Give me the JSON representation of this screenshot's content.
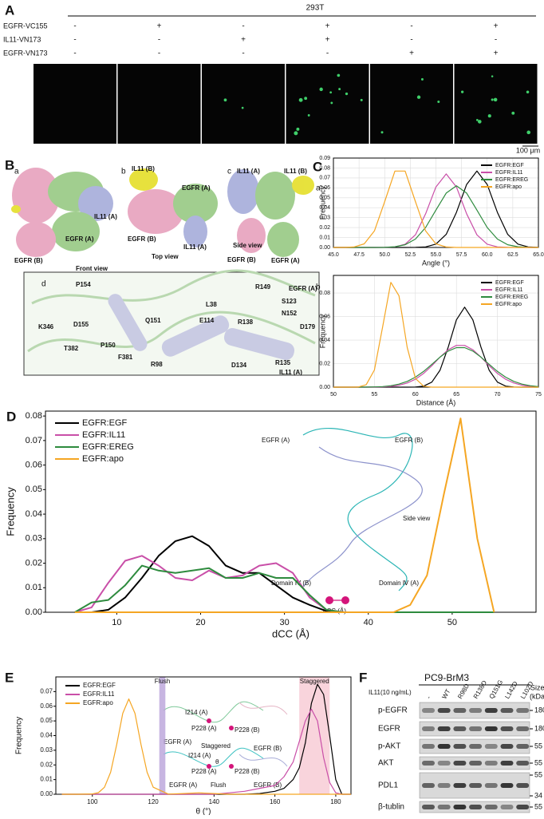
{
  "panel_labels": [
    "A",
    "B",
    "C",
    "D",
    "E",
    "F"
  ],
  "panel_a": {
    "title": "293T",
    "rows": [
      {
        "label": "EGFR-VC155",
        "marks": [
          "-",
          "+",
          "-",
          "+",
          "-",
          "+"
        ]
      },
      {
        "label": "IL11-VN173",
        "marks": [
          "-",
          "-",
          "+",
          "+",
          "-",
          "-"
        ]
      },
      {
        "label": "EGFR-VN173",
        "marks": [
          "-",
          "-",
          "-",
          "-",
          "+",
          "+"
        ]
      }
    ],
    "scale_bar": "100 μm"
  },
  "panel_b": {
    "views": [
      {
        "letter": "a",
        "caption": "Front view",
        "labels": [
          "IL11 (A)",
          "EGFR (A)",
          "EGFR (B)"
        ]
      },
      {
        "letter": "b",
        "caption": "Top view",
        "labels": [
          "IL11 (B)",
          "EGFR (A)",
          "EGFR (B)",
          "IL11 (A)"
        ]
      },
      {
        "letter": "c",
        "caption": "Side view",
        "labels": [
          "IL11 (A)",
          "IL11 (B)",
          "EGFR (B)",
          "EGFR (A)"
        ]
      }
    ],
    "detail": {
      "letter": "d",
      "labels": [
        "P154",
        "L38",
        "R149",
        "EGFR (A)",
        "S123",
        "N152",
        "D179",
        "K346",
        "D155",
        "Q151",
        "E114",
        "R138",
        "P150",
        "T382",
        "F381",
        "R98",
        "D134",
        "R135",
        "IL11 (A)"
      ]
    }
  },
  "chart_data": [
    {
      "type": "line",
      "label": "a",
      "xlabel": "Angle (°)",
      "ylabel": "Frequency",
      "grid": true,
      "legend": "upper right",
      "xlim": [
        45,
        65
      ],
      "ylim": [
        0,
        0.09
      ],
      "xticks": [
        {
          "value": 45,
          "label": "45.0"
        },
        {
          "value": 47.5,
          "label": "47.5"
        },
        {
          "value": 50,
          "label": "50.0"
        },
        {
          "value": 52.5,
          "label": "52.5"
        },
        {
          "value": 55,
          "label": "55.0"
        },
        {
          "value": 57.5,
          "label": "57.5"
        },
        {
          "value": 60,
          "label": "60.0"
        },
        {
          "value": 62.5,
          "label": "62.5"
        },
        {
          "value": 65,
          "label": "65.0"
        }
      ],
      "yticks": [
        {
          "value": 0,
          "label": "0.00"
        },
        0.01,
        0.02,
        0.03,
        0.04,
        0.05,
        0.06,
        0.07,
        0.08,
        0.09
      ],
      "x": [
        45,
        46,
        47,
        48,
        49,
        50,
        51,
        52,
        53,
        54,
        55,
        56,
        57,
        58,
        59,
        60,
        61,
        62,
        63,
        64,
        65
      ],
      "series": [
        {
          "name": "EGFR:EGF",
          "color": "#000000",
          "values": [
            0,
            0,
            0,
            0,
            0,
            0,
            0,
            0,
            0.0001,
            0.0006,
            0.0034,
            0.0132,
            0.0353,
            0.0634,
            0.077,
            0.0634,
            0.0353,
            0.0132,
            0.0034,
            0.0006,
            0.0001
          ]
        },
        {
          "name": "EGFR:IL11",
          "color": "#c94fa8",
          "values": [
            0,
            0,
            0,
            0,
            0,
            0.0001,
            0.0006,
            0.0033,
            0.0127,
            0.0339,
            0.0609,
            0.074,
            0.0609,
            0.0339,
            0.0127,
            0.0033,
            0.0006,
            0.0001,
            0,
            0,
            0
          ]
        },
        {
          "name": "EGFR:EREG",
          "color": "#2e8b3e",
          "values": [
            0,
            0,
            0,
            0,
            0,
            0.0001,
            0.0007,
            0.0027,
            0.0084,
            0.0201,
            0.0376,
            0.0547,
            0.062,
            0.0547,
            0.0376,
            0.0201,
            0.0084,
            0.0027,
            0.0007,
            0.0001,
            0
          ]
        },
        {
          "name": "EGFR:apo",
          "color": "#f5a623",
          "values": [
            0,
            0,
            0.0005,
            0.0036,
            0.0166,
            0.0462,
            0.0769,
            0.0769,
            0.0462,
            0.0166,
            0.0036,
            0.0005,
            0,
            0,
            0,
            0,
            0,
            0,
            0,
            0,
            0
          ]
        }
      ]
    },
    {
      "type": "line",
      "label": "b",
      "xlabel": "Distance (Å)",
      "ylabel": "Frequency",
      "grid": true,
      "legend": "upper right",
      "xlim": [
        50,
        75
      ],
      "ylim": [
        0,
        0.095
      ],
      "xticks": [
        50,
        55,
        60,
        65,
        70,
        75
      ],
      "yticks": [
        {
          "value": 0,
          "label": "0.00"
        },
        {
          "value": 0.02,
          "label": "0.02"
        },
        {
          "value": 0.04,
          "label": "0.04"
        },
        {
          "value": 0.06,
          "label": "0.06"
        },
        {
          "value": 0.08,
          "label": "0.08"
        }
      ],
      "x": [
        50,
        51,
        52,
        53,
        54,
        55,
        56,
        57,
        58,
        59,
        60,
        61,
        62,
        63,
        64,
        65,
        66,
        67,
        68,
        69,
        70,
        71,
        72,
        73,
        74,
        75
      ],
      "series": [
        {
          "name": "EGFR:EGF",
          "color": "#000000",
          "values": [
            0,
            0,
            0,
            0,
            0,
            0,
            0,
            0,
            0,
            0,
            0.0001,
            0.0009,
            0.0043,
            0.0143,
            0.034,
            0.0572,
            0.068,
            0.0572,
            0.034,
            0.0143,
            0.0043,
            0.0009,
            0.0001,
            0,
            0,
            0
          ]
        },
        {
          "name": "EGFR:IL11",
          "color": "#c94fa8",
          "values": [
            0,
            0,
            0,
            0,
            0,
            0.0001,
            0.0002,
            0.0006,
            0.0016,
            0.0035,
            0.0067,
            0.0117,
            0.0182,
            0.0255,
            0.0318,
            0.0355,
            0.0355,
            0.0318,
            0.0255,
            0.0182,
            0.0117,
            0.0067,
            0.0035,
            0.0016,
            0.0006,
            0.0002
          ]
        },
        {
          "name": "EGFR:EREG",
          "color": "#2e8b3e",
          "values": [
            0,
            0,
            0,
            0,
            0.0001,
            0.0002,
            0.0005,
            0.0012,
            0.0026,
            0.0049,
            0.0085,
            0.0134,
            0.0194,
            0.0255,
            0.0307,
            0.0336,
            0.0336,
            0.0307,
            0.0255,
            0.0194,
            0.0134,
            0.0085,
            0.0049,
            0.0026,
            0.0012,
            0.0005
          ]
        },
        {
          "name": "EGFR:apo",
          "color": "#f5a623",
          "values": [
            0,
            0,
            0,
            0.0001,
            0.0021,
            0.0146,
            0.0512,
            0.0891,
            0.0776,
            0.0338,
            0.0074,
            0.0008,
            0,
            0,
            0,
            0,
            0,
            0,
            0,
            0,
            0,
            0,
            0,
            0,
            0,
            0
          ]
        }
      ]
    },
    {
      "type": "line",
      "xlabel": "dCC (Å)",
      "ylabel": "Frequency",
      "grid": false,
      "legend": "upper left",
      "xlim": [
        1.5,
        60
      ],
      "ylim": [
        0,
        0.082
      ],
      "xticks": [
        10,
        20,
        30,
        40,
        50
      ],
      "yticks": [
        {
          "value": 0,
          "label": "0.00"
        },
        0.01,
        0.02,
        0.03,
        0.04,
        0.05,
        0.06,
        0.07,
        0.08
      ],
      "x": [
        5,
        7,
        9,
        11,
        13,
        15,
        17,
        19,
        21,
        23,
        25,
        27,
        29,
        31,
        33,
        35,
        37,
        39,
        41,
        43,
        45,
        47,
        49,
        51,
        53,
        55
      ],
      "series": [
        {
          "name": "EGFR:EGF",
          "color": "#000000",
          "values": [
            0,
            0,
            0.001,
            0.006,
            0.014,
            0.023,
            0.029,
            0.031,
            0.027,
            0.019,
            0.016,
            0.016,
            0.011,
            0.006,
            0.003,
            0.0005,
            0,
            0,
            0,
            0,
            0,
            0,
            0,
            0,
            0,
            0
          ]
        },
        {
          "name": "EGFR:IL11",
          "color": "#c94fa8",
          "values": [
            0,
            0.002,
            0.012,
            0.021,
            0.023,
            0.019,
            0.014,
            0.013,
            0.017,
            0.014,
            0.015,
            0.019,
            0.02,
            0.016,
            0.006,
            0.001,
            0,
            0,
            0,
            0,
            0,
            0,
            0,
            0,
            0,
            0
          ]
        },
        {
          "name": "EGFR:EREG",
          "color": "#2e8b3e",
          "values": [
            0,
            0.004,
            0.005,
            0.011,
            0.019,
            0.017,
            0.016,
            0.017,
            0.018,
            0.014,
            0.014,
            0.016,
            0.014,
            0.014,
            0.007,
            0.001,
            0,
            0,
            0,
            0,
            0,
            0,
            0,
            0,
            0,
            0
          ]
        },
        {
          "name": "EGFR:apo",
          "color": "#f5a623",
          "values": [
            0,
            0,
            0,
            0,
            0,
            0,
            0,
            0,
            0,
            0,
            0,
            0,
            0,
            0,
            0,
            0,
            0,
            0,
            0,
            0,
            0.003,
            0.015,
            0.048,
            0.079,
            0.03,
            0
          ]
        }
      ],
      "annotations": [
        "EGFR (A)",
        "EGFR (B)",
        "Side view",
        "Domain Ⅳ (B)",
        "Domain Ⅳ (A)",
        "dCC (Å)"
      ]
    },
    {
      "type": "line",
      "xlabel": "θ (°)",
      "ylabel": "Frequency",
      "grid": false,
      "legend": "upper left",
      "xlim": [
        88,
        185
      ],
      "ylim": [
        0,
        0.08
      ],
      "xticks": [
        100,
        120,
        140,
        160,
        180
      ],
      "yticks": [
        {
          "value": 0,
          "label": "0.00"
        },
        0.01,
        0.02,
        0.03,
        0.04,
        0.05,
        0.06,
        0.07
      ],
      "x": [
        90,
        95,
        100,
        102,
        104,
        106,
        108,
        110,
        112,
        114,
        116,
        118,
        120,
        125,
        130,
        135,
        140,
        145,
        150,
        155,
        160,
        163,
        166,
        168,
        170,
        172,
        174,
        176,
        178,
        180,
        182,
        185
      ],
      "series": [
        {
          "name": "EGFR:EGF",
          "color": "#000000",
          "values": [
            0,
            0,
            0,
            0,
            0,
            0,
            0,
            0,
            0,
            0,
            0,
            0,
            0,
            0,
            0,
            0,
            0,
            0,
            0,
            0.0005,
            0.002,
            0.004,
            0.01,
            0.018,
            0.035,
            0.062,
            0.075,
            0.068,
            0.04,
            0.01,
            0,
            0
          ]
        },
        {
          "name": "EGFR:IL11",
          "color": "#c94fa8",
          "values": [
            0,
            0,
            0,
            0,
            0,
            0,
            0,
            0,
            0,
            0,
            0,
            0,
            0,
            0,
            0,
            0,
            0,
            0.001,
            0.002,
            0.004,
            0.006,
            0.012,
            0.022,
            0.036,
            0.05,
            0.058,
            0.05,
            0.025,
            0.008,
            0.001,
            0,
            0
          ]
        },
        {
          "name": "EGFR:apo",
          "color": "#f5a623",
          "values": [
            0,
            0,
            0.0002,
            0.0011,
            0.0048,
            0.015,
            0.0339,
            0.0552,
            0.065,
            0.0552,
            0.0339,
            0.015,
            0.0048,
            0.0001,
            0.0005,
            0.001,
            0.0005,
            0,
            0,
            0,
            0,
            0,
            0,
            0,
            0,
            0,
            0,
            0,
            0,
            0,
            0,
            0
          ]
        }
      ],
      "bands": [
        {
          "label": "Flush",
          "range": [
            122,
            124
          ],
          "color": "#b9a3d9"
        },
        {
          "label": "Staggered",
          "range": [
            168,
            178
          ],
          "color": "#f7c9d3"
        }
      ],
      "annotations": [
        "I214 (A)",
        "P228 (A)",
        "P228 (B)",
        "EGFR (A)",
        "Staggered",
        "EGFR (B)",
        "I214 (A)",
        "θ",
        "P228 (A)",
        "P228 (B)",
        "EGFR (A)",
        "Flush",
        "EGFR (B)"
      ]
    }
  ],
  "panel_f": {
    "title": "PC9-BrM3",
    "treatment": "IL11(10 ng/mL)",
    "lanes": [
      "-",
      "WT",
      "R98D",
      "R138D",
      "Q151G",
      "L142D",
      "L102D"
    ],
    "size_header": [
      "Size",
      "(kDa)"
    ],
    "rows": [
      {
        "name": "p-EGFR",
        "sizes": [
          180
        ]
      },
      {
        "name": "EGFR",
        "sizes": [
          180
        ]
      },
      {
        "name": "p-AKT",
        "sizes": [
          55
        ]
      },
      {
        "name": "AKT",
        "sizes": [
          55
        ]
      },
      {
        "name": "PDL1",
        "sizes": [
          55,
          34
        ]
      },
      {
        "name": "β-tublin",
        "sizes": [
          55
        ]
      }
    ]
  }
}
